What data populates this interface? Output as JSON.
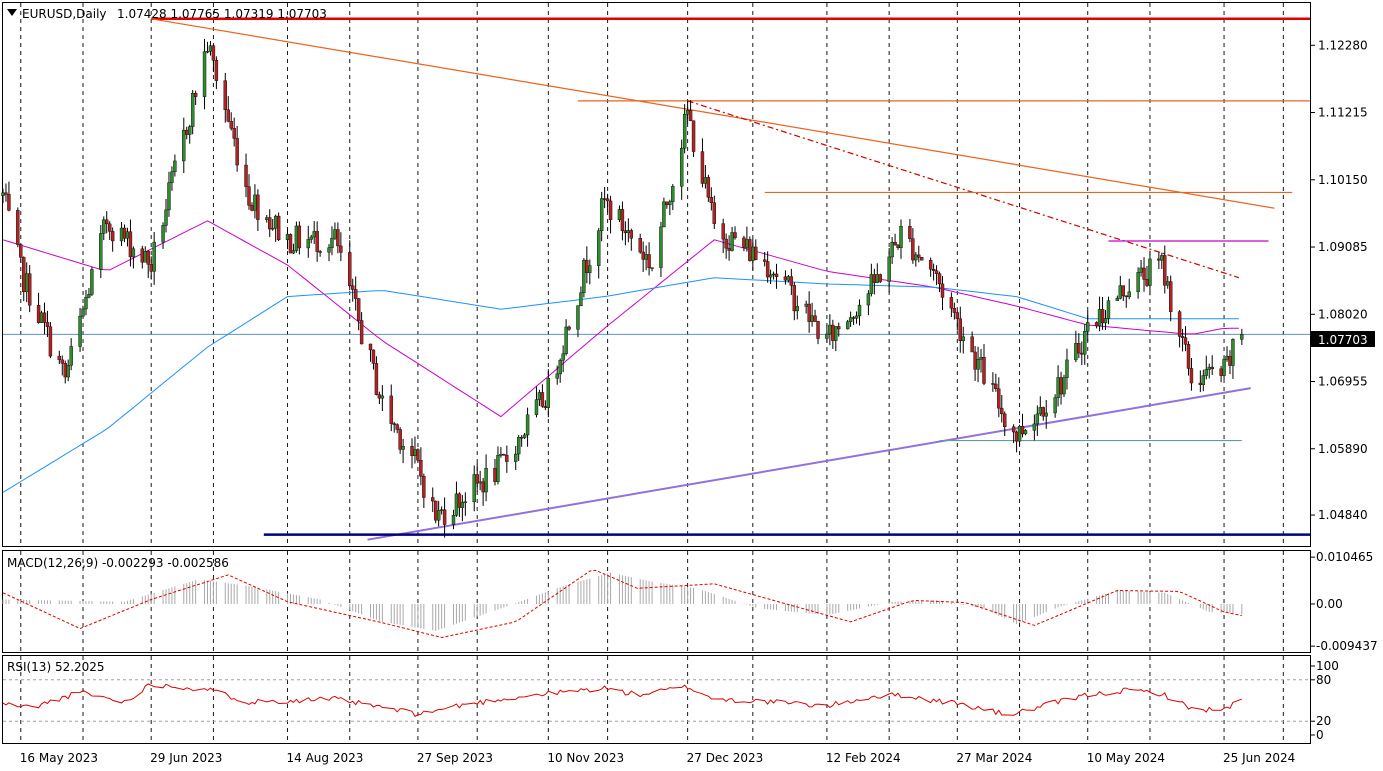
{
  "window": {
    "symbol_title": "EURUSD,Daily",
    "ohlc": "1.07428 1.07765 1.07319 1.07703"
  },
  "colors": {
    "bull": "#2e8b2e",
    "bear": "#b22222",
    "wick": "#000000",
    "ma_fast": "#cc00cc",
    "ma_slow": "#1e90ff",
    "resistance": "#e00000",
    "trend_orange": "#e86420",
    "support_purple": "#9370db",
    "support_navy": "#000080",
    "macd_signal": "#e00000",
    "macd_hist": "#a9a9a9",
    "rsi_line": "#e00000"
  },
  "chart_data": [
    {
      "type": "candlestick",
      "panel": "main",
      "title": "EURUSD,Daily",
      "ylim": [
        1.0435,
        1.1295
      ],
      "price_ticks": [
        "1.12280",
        "1.11215",
        "1.10150",
        "1.09085",
        "1.08020",
        "1.06955",
        "1.05890",
        "1.04840"
      ],
      "current_price_label": "1.07703",
      "current_price": 1.07703,
      "x_tick_labels": [
        "16 May 2023",
        "29 Jun 2023",
        "14 Aug 2023",
        "27 Sep 2023",
        "10 Nov 2023",
        "27 Dec 2023",
        "12 Feb 2024",
        "27 Mar 2024",
        "10 May 2024",
        "25 Jun 2024"
      ],
      "close_path": {
        "dates": [
          "2023-05-10",
          "2023-05-16",
          "2023-05-31",
          "2023-06-14",
          "2023-06-29",
          "2023-07-18",
          "2023-08-01",
          "2023-08-14",
          "2023-08-30",
          "2023-09-15",
          "2023-09-27",
          "2023-10-03",
          "2023-10-25",
          "2023-11-10",
          "2023-11-29",
          "2023-12-15",
          "2023-12-27",
          "2024-01-05",
          "2024-01-24",
          "2024-02-12",
          "2024-02-28",
          "2024-03-08",
          "2024-03-19",
          "2024-03-27",
          "2024-04-12",
          "2024-04-16",
          "2024-05-02",
          "2024-05-10",
          "2024-05-24",
          "2024-06-04",
          "2024-06-14",
          "2024-06-25",
          "2024-07-01"
        ],
        "closes": [
          1.099,
          1.087,
          1.07,
          1.095,
          1.088,
          1.123,
          1.099,
          1.092,
          1.092,
          1.066,
          1.056,
          1.048,
          1.056,
          1.068,
          1.098,
          1.088,
          1.112,
          1.094,
          1.088,
          1.076,
          1.085,
          1.093,
          1.087,
          1.079,
          1.064,
          1.061,
          1.07,
          1.078,
          1.085,
          1.088,
          1.07,
          1.071,
          1.077
        ]
      },
      "moving_averages": [
        {
          "period": 50,
          "color": "#cc00cc",
          "dates": [
            "2023-05-10",
            "2023-06-14",
            "2023-07-18",
            "2023-08-14",
            "2023-09-15",
            "2023-10-25",
            "2023-11-29",
            "2024-01-05",
            "2024-02-12",
            "2024-03-19",
            "2024-04-16",
            "2024-05-10",
            "2024-06-14",
            "2024-06-25"
          ],
          "values": [
            1.092,
            1.087,
            1.095,
            1.088,
            1.076,
            1.064,
            1.078,
            1.092,
            1.087,
            1.0845,
            1.0815,
            1.0785,
            1.077,
            1.078
          ]
        },
        {
          "period": 200,
          "color": "#1e90ff",
          "dates": [
            "2023-05-10",
            "2023-06-14",
            "2023-07-18",
            "2023-08-14",
            "2023-09-15",
            "2023-10-25",
            "2023-11-29",
            "2024-01-05",
            "2024-02-12",
            "2024-03-19",
            "2024-04-16",
            "2024-05-10",
            "2024-06-14",
            "2024-06-25"
          ],
          "values": [
            1.052,
            1.062,
            1.075,
            1.083,
            1.084,
            1.081,
            1.083,
            1.086,
            1.085,
            1.0845,
            1.083,
            1.0795,
            1.0795,
            1.0795
          ]
        }
      ],
      "drawn_lines": [
        {
          "name": "major-resistance",
          "color": "#e00000",
          "from": [
            "2023-06-29",
            1.127
          ],
          "to": [
            "2024-07-24",
            1.127
          ]
        },
        {
          "name": "long-downtrend",
          "color": "#e86420",
          "from": [
            "2023-06-29",
            1.127
          ],
          "to": [
            "2024-07-12",
            1.097
          ]
        },
        {
          "name": "dec-high-level",
          "color": "#e86420",
          "from": [
            "2023-11-20",
            1.114
          ],
          "to": [
            "2024-07-24",
            1.114
          ]
        },
        {
          "name": "short-downtrend-dashed",
          "color": "#cc0000",
          "from": [
            "2023-12-27",
            1.114
          ],
          "to": [
            "2024-06-30",
            1.086
          ]
        },
        {
          "name": "feb-high-level",
          "color": "#e86420",
          "from": [
            "2024-01-22",
            1.0995
          ],
          "to": [
            "2024-07-18",
            1.0995
          ]
        },
        {
          "name": "may-high-level",
          "color": "#cc00cc",
          "from": [
            "2024-05-17",
            1.0918
          ],
          "to": [
            "2024-07-10",
            1.0918
          ]
        },
        {
          "name": "rising-support",
          "color": "#9370db",
          "from": [
            "2023-09-10",
            1.0445
          ],
          "to": [
            "2024-07-04",
            1.0685
          ]
        },
        {
          "name": "april-low-level",
          "color": "#5f9ea0",
          "from": [
            "2024-03-21",
            1.0602
          ],
          "to": [
            "2024-07-01",
            1.0602
          ]
        },
        {
          "name": "october-low-level",
          "color": "#000080",
          "from": [
            "2023-08-06",
            1.0453
          ],
          "to": [
            "2024-07-24",
            1.0453
          ]
        }
      ]
    },
    {
      "type": "bar",
      "panel": "macd",
      "title": "MACD(12,26,9) -0.002293 -0.002586",
      "ylim": [
        -0.0094,
        0.0105
      ],
      "ticks": [
        "0.010465",
        "0.00",
        "-0.009437"
      ],
      "histogram": {
        "dates": [
          "2023-05-10",
          "2023-05-25",
          "2023-06-20",
          "2023-07-15",
          "2023-08-01",
          "2023-08-25",
          "2023-09-15",
          "2023-10-03",
          "2023-10-25",
          "2023-11-15",
          "2023-12-01",
          "2023-12-15",
          "2023-12-30",
          "2024-01-20",
          "2024-02-12",
          "2024-03-05",
          "2024-03-20",
          "2024-04-05",
          "2024-04-16",
          "2024-05-01",
          "2024-05-20",
          "2024-06-05",
          "2024-06-20",
          "2024-07-01"
        ],
        "values": [
          0.001,
          0.0008,
          0.0005,
          0.0055,
          0.004,
          0.001,
          -0.004,
          -0.006,
          -0.001,
          0.004,
          0.007,
          0.005,
          0.0035,
          -0.001,
          -0.0025,
          0.0005,
          0.0008,
          -0.001,
          -0.0045,
          -0.0005,
          0.003,
          0.0025,
          -0.0018,
          -0.0023
        ]
      },
      "signal": {
        "dates": [
          "2023-05-10",
          "2023-06-05",
          "2023-06-29",
          "2023-07-25",
          "2023-08-14",
          "2023-09-15",
          "2023-10-05",
          "2023-10-30",
          "2023-11-25",
          "2023-12-10",
          "2024-01-05",
          "2024-02-01",
          "2024-02-20",
          "2024-03-12",
          "2024-03-30",
          "2024-04-22",
          "2024-05-20",
          "2024-06-10",
          "2024-06-25",
          "2024-07-01"
        ],
        "values": [
          0.0025,
          -0.0055,
          0.001,
          0.0065,
          0.0005,
          -0.0042,
          -0.0075,
          -0.004,
          0.0078,
          0.0035,
          0.0045,
          -0.0005,
          -0.004,
          0.0008,
          0.0003,
          -0.0048,
          0.003,
          0.0028,
          -0.0018,
          -0.0026
        ]
      }
    },
    {
      "type": "line",
      "panel": "rsi",
      "title": "RSI(13) 52.2025",
      "ylim": [
        0,
        100
      ],
      "ticks": [
        "100",
        "80",
        "20",
        "0"
      ],
      "levels": [
        80,
        20
      ],
      "series": {
        "dates": [
          "2023-05-10",
          "2023-05-20",
          "2023-06-05",
          "2023-06-20",
          "2023-06-29",
          "2023-07-18",
          "2023-08-01",
          "2023-08-14",
          "2023-08-30",
          "2023-09-15",
          "2023-09-27",
          "2023-10-10",
          "2023-10-25",
          "2023-11-10",
          "2023-11-29",
          "2023-12-10",
          "2023-12-27",
          "2024-01-05",
          "2024-01-24",
          "2024-02-12",
          "2024-02-28",
          "2024-03-08",
          "2024-03-19",
          "2024-03-27",
          "2024-04-12",
          "2024-04-16",
          "2024-05-02",
          "2024-05-10",
          "2024-05-24",
          "2024-06-04",
          "2024-06-14",
          "2024-06-25",
          "2024-07-01"
        ],
        "values": [
          45,
          40,
          62,
          48,
          74,
          66,
          48,
          50,
          52,
          40,
          30,
          42,
          52,
          60,
          68,
          58,
          70,
          52,
          48,
          42,
          56,
          58,
          50,
          46,
          30,
          32,
          50,
          58,
          65,
          60,
          38,
          36,
          52
        ]
      }
    }
  ]
}
